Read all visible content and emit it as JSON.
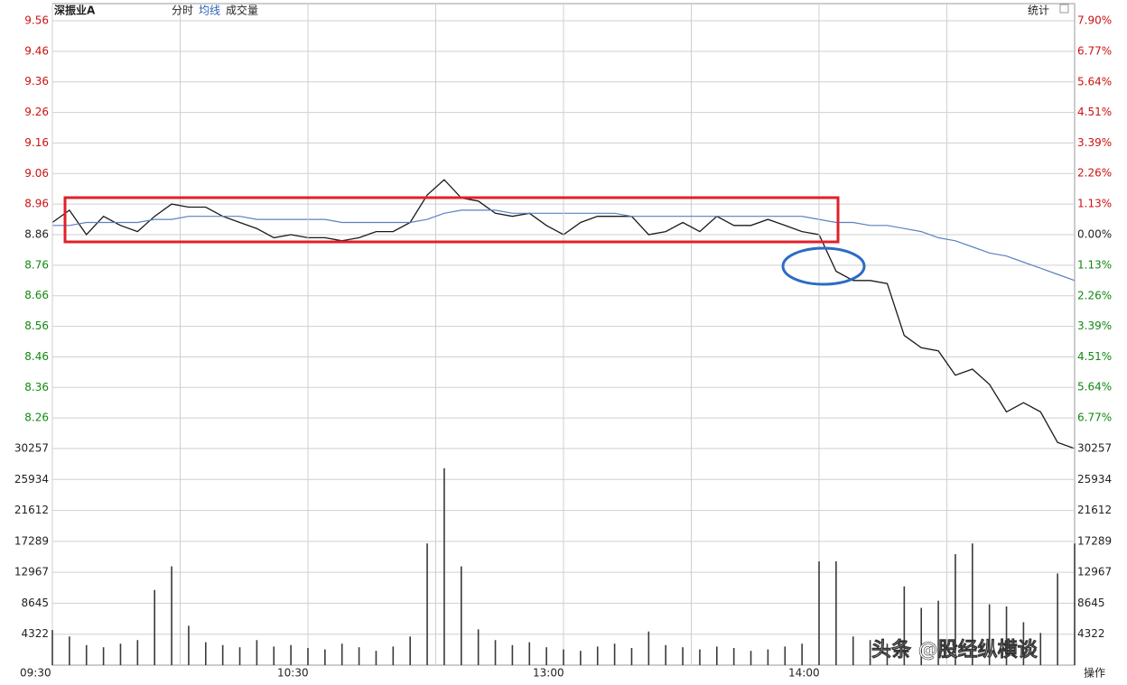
{
  "header": {
    "stock": "深振业A",
    "tabs": [
      "分时",
      "均线",
      "成交量"
    ],
    "stats": "统计"
  },
  "footer": {
    "action": "操作"
  },
  "watermark": "头条 @股经纵横谈",
  "chart_data": [
    {
      "type": "line",
      "x": [
        0,
        4,
        8,
        12,
        16,
        20,
        24,
        28,
        32,
        36,
        40,
        44,
        48,
        52,
        56,
        60,
        64,
        68,
        72,
        76,
        80,
        84,
        88,
        92,
        96,
        100,
        104,
        108,
        112,
        116,
        120,
        124,
        128,
        132,
        136,
        140,
        144,
        148,
        152,
        156,
        160,
        164,
        168,
        172,
        176,
        180,
        184,
        188,
        192,
        196,
        200,
        204,
        208,
        212,
        216,
        220,
        224,
        228,
        232,
        236,
        240
      ],
      "xlim": [
        0,
        240
      ],
      "series": [
        {
          "color": "#1a1a1a",
          "values": [
            8.9,
            8.94,
            8.86,
            8.92,
            8.89,
            8.87,
            8.92,
            8.96,
            8.95,
            8.95,
            8.92,
            8.9,
            8.88,
            8.85,
            8.86,
            8.85,
            8.85,
            8.84,
            8.85,
            8.87,
            8.87,
            8.9,
            8.99,
            9.04,
            8.98,
            8.97,
            8.93,
            8.92,
            8.93,
            8.89,
            8.86,
            8.9,
            8.92,
            8.92,
            8.92,
            8.86,
            8.87,
            8.9,
            8.87,
            8.92,
            8.89,
            8.89,
            8.91,
            8.89,
            8.87,
            8.86,
            8.74,
            8.71,
            8.71,
            8.7,
            8.53,
            8.49,
            8.48,
            8.4,
            8.42,
            8.37,
            8.28,
            8.31,
            8.28,
            8.18,
            8.16
          ]
        },
        {
          "color": "#5b80bf",
          "values": [
            8.89,
            8.89,
            8.9,
            8.9,
            8.9,
            8.9,
            8.91,
            8.91,
            8.92,
            8.92,
            8.92,
            8.92,
            8.91,
            8.91,
            8.91,
            8.91,
            8.91,
            8.9,
            8.9,
            8.9,
            8.9,
            8.9,
            8.91,
            8.93,
            8.94,
            8.94,
            8.94,
            8.93,
            8.93,
            8.93,
            8.93,
            8.93,
            8.93,
            8.93,
            8.92,
            8.92,
            8.92,
            8.92,
            8.92,
            8.92,
            8.92,
            8.92,
            8.92,
            8.92,
            8.92,
            8.91,
            8.9,
            8.9,
            8.89,
            8.89,
            8.88,
            8.87,
            8.85,
            8.84,
            8.82,
            8.8,
            8.79,
            8.77,
            8.75,
            8.73,
            8.71
          ]
        }
      ],
      "ylim": [
        8.16,
        9.56
      ],
      "yticks": [
        9.56,
        9.46,
        9.36,
        9.26,
        9.16,
        9.06,
        8.96,
        8.86,
        8.76,
        8.66,
        8.56,
        8.46,
        8.36,
        8.26
      ],
      "y2lim": [
        -7.9,
        7.9
      ],
      "y2ticks": [
        {
          "value": 7.9,
          "label": "7.90%"
        },
        {
          "value": 6.77,
          "label": "6.77%"
        },
        {
          "value": 5.64,
          "label": "5.64%"
        },
        {
          "value": 4.51,
          "label": "4.51%"
        },
        {
          "value": 3.39,
          "label": "3.39%"
        },
        {
          "value": 2.26,
          "label": "2.26%"
        },
        {
          "value": 1.13,
          "label": "1.13%"
        },
        {
          "value": 0,
          "label": "0.00%"
        },
        {
          "value": -1.13,
          "label": "1.13%"
        },
        {
          "value": -2.26,
          "label": "2.26%"
        },
        {
          "value": -3.39,
          "label": "3.39%"
        },
        {
          "value": -4.51,
          "label": "4.51%"
        },
        {
          "value": -5.64,
          "label": "5.64%"
        },
        {
          "value": -6.77,
          "label": "6.77%"
        }
      ],
      "up_color": "#cc1111",
      "down_color": "#118811",
      "grid": true
    },
    {
      "type": "bar",
      "x": [
        0,
        4,
        8,
        12,
        16,
        20,
        24,
        28,
        32,
        36,
        40,
        44,
        48,
        52,
        56,
        60,
        64,
        68,
        72,
        76,
        80,
        84,
        88,
        92,
        96,
        100,
        104,
        108,
        112,
        116,
        120,
        124,
        128,
        132,
        136,
        140,
        144,
        148,
        152,
        156,
        160,
        164,
        168,
        172,
        176,
        180,
        184,
        188,
        192,
        196,
        200,
        204,
        208,
        212,
        216,
        220,
        224,
        228,
        232,
        236,
        240
      ],
      "xlim": [
        0,
        240
      ],
      "xticks": [
        {
          "value": 0,
          "label": "09:30"
        },
        {
          "value": 60,
          "label": "10:30"
        },
        {
          "value": 120,
          "label": "13:00"
        },
        {
          "value": 180,
          "label": "14:00"
        }
      ],
      "values": [
        4900,
        4000,
        2800,
        2500,
        3000,
        3500,
        10500,
        13800,
        5500,
        3200,
        2800,
        2500,
        3500,
        2600,
        2800,
        2400,
        2200,
        3000,
        2500,
        2000,
        2600,
        4000,
        17000,
        27500,
        13800,
        5000,
        3500,
        2800,
        3200,
        2500,
        2200,
        2000,
        2600,
        3000,
        2400,
        4700,
        2800,
        2500,
        2200,
        2600,
        2400,
        2000,
        2200,
        2600,
        3000,
        14500,
        14500,
        4000,
        3500,
        3000,
        11000,
        8000,
        9000,
        15500,
        17000,
        8500,
        8200,
        6000,
        4500,
        12800,
        17000
      ],
      "color": "#3a3a3a",
      "ylim": [
        0,
        30257
      ],
      "yticks": [
        4322,
        8645,
        12967,
        17289,
        21612,
        25934,
        30257
      ],
      "grid": true
    }
  ]
}
